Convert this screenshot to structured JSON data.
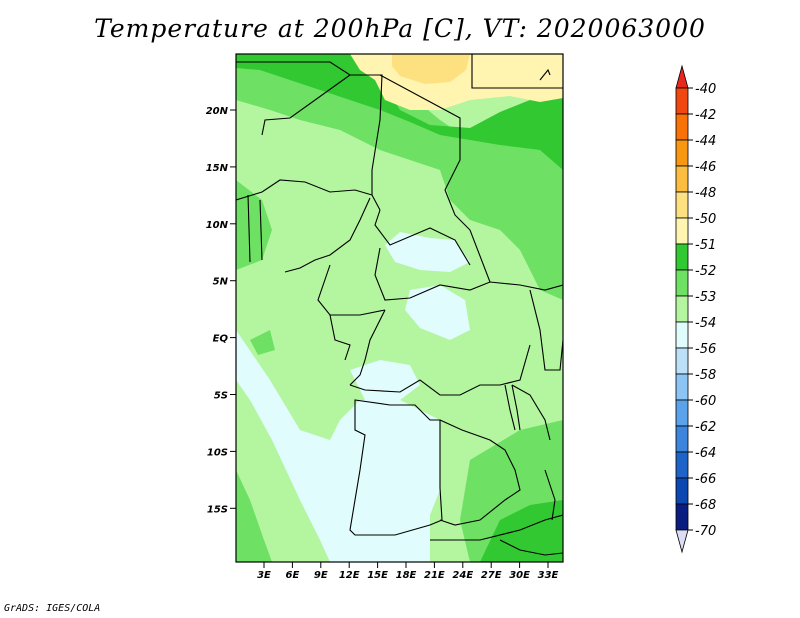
{
  "title": "Temperature at 200hPa [C], VT: 2020063000",
  "credit": "GrADS: IGES/COLA",
  "map": {
    "lat_labels": [
      "20N",
      "15N",
      "10N",
      "5N",
      "EQ",
      "5S",
      "10S",
      "15S"
    ],
    "lon_labels": [
      "3E",
      "6E",
      "9E",
      "12E",
      "15E",
      "18E",
      "21E",
      "24E",
      "27E",
      "30E",
      "33E"
    ]
  },
  "legend": {
    "labels": [
      "-40",
      "-42",
      "-44",
      "-46",
      "-48",
      "-50",
      "-51",
      "-52",
      "-53",
      "-54",
      "-56",
      "-58",
      "-60",
      "-62",
      "-64",
      "-66",
      "-68",
      "-70"
    ],
    "colors": [
      "#e8281c",
      "#f04810",
      "#f87208",
      "#f89810",
      "#fbbd40",
      "#fde080",
      "#fff5b0",
      "#32c832",
      "#6ee164",
      "#b4f5a0",
      "#e0fcfc",
      "#bce0f8",
      "#8cc4f4",
      "#5aa2ea",
      "#3c84dc",
      "#1e64c8",
      "#0c48b0",
      "#0a1e82",
      "#dcdcf4"
    ]
  }
}
